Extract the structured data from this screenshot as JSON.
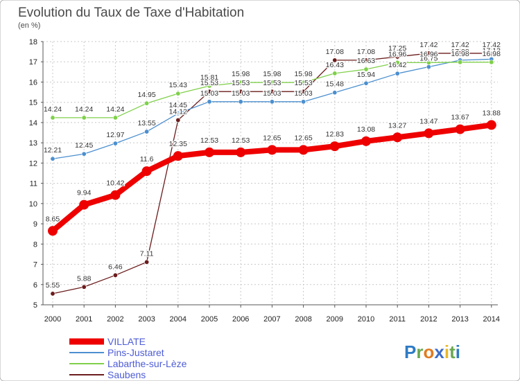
{
  "colors": {
    "background": "#ffffff",
    "grid": "#c8c8c8",
    "axis": "#555555",
    "legend_text": "#4d5cd6",
    "dlabel_halo": "#ffffff"
  },
  "brand": {
    "letters": [
      "P",
      "r",
      "o",
      "x",
      "i",
      "t",
      "i"
    ],
    "colors": [
      "#2e7bc4",
      "#6aa84f",
      "#e07b20",
      "#3b6cc9",
      "#e8b82a",
      "#6aa84f",
      "#2e7bc4"
    ]
  },
  "chart_data": {
    "type": "line",
    "title": "Evolution du Taux de Taxe d'Habitation",
    "subtitle": "(en %)",
    "x": [
      "2000",
      "2001",
      "2002",
      "2003",
      "2004",
      "2005",
      "2006",
      "2007",
      "2008",
      "2009",
      "2010",
      "2011",
      "2012",
      "2013",
      "2014"
    ],
    "ylim": [
      5,
      18
    ],
    "yticks": [
      5,
      6,
      7,
      8,
      9,
      10,
      11,
      12,
      13,
      14,
      15,
      16,
      17,
      18
    ],
    "grid": true,
    "legend_position": "bottom-left",
    "series": [
      {
        "name": "Saubens",
        "color": "#6b1c1c",
        "width": 1.3,
        "marker": 3.2,
        "values": [
          5.55,
          5.88,
          6.46,
          7.11,
          14.12,
          15.53,
          15.53,
          15.53,
          15.53,
          17.08,
          17.08,
          17.25,
          17.42,
          17.42,
          17.42
        ],
        "labels": [
          "5.55",
          "5.88",
          "6.46",
          "7.11",
          "14.12",
          "15.53",
          "15.53",
          "15.53",
          "15.53",
          "17.08",
          "17.08",
          "17.25",
          "17.42",
          "17.42",
          "17.42"
        ]
      },
      {
        "name": "Pins-Justaret",
        "color": "#4b8fcf",
        "width": 1.3,
        "marker": 3.2,
        "values": [
          12.21,
          12.45,
          12.97,
          13.55,
          14.45,
          15.03,
          15.03,
          15.03,
          15.03,
          15.48,
          15.94,
          16.42,
          16.75,
          17.08,
          17.13
        ],
        "labels": [
          "12.21",
          "12.45",
          "12.97",
          "13.55",
          "14.45",
          "15.03",
          "15.03",
          "15.03",
          "15.03",
          "15.48",
          "15.94",
          "16.42",
          "16.75",
          "17.08",
          "17.13"
        ]
      },
      {
        "name": "Labarthe-sur-Lèze",
        "color": "#7fd04a",
        "width": 1.3,
        "marker": 3.2,
        "values": [
          14.24,
          14.24,
          14.24,
          14.95,
          15.43,
          15.81,
          15.98,
          15.98,
          15.98,
          16.43,
          16.63,
          16.96,
          16.96,
          16.98,
          16.98
        ],
        "labels": [
          "14.24",
          "14.24",
          "14.24",
          "14.95",
          "15.43",
          "15.81",
          "15.98",
          "15.98",
          "15.98",
          "16.43",
          "16.63",
          "16.96",
          "16.96",
          "16.98",
          "16.98"
        ]
      },
      {
        "name": "VILLATE",
        "color": "#ee0000",
        "width": 8,
        "marker": 7,
        "values": [
          8.65,
          9.94,
          10.42,
          11.6,
          12.35,
          12.53,
          12.53,
          12.65,
          12.65,
          12.83,
          13.08,
          13.27,
          13.47,
          13.67,
          13.88
        ],
        "labels": [
          "8.65",
          "9.94",
          "10.42",
          "11.6",
          "12.35",
          "12.53",
          "12.53",
          "12.65",
          "12.65",
          "12.83",
          "13.08",
          "13.27",
          "13.47",
          "13.67",
          "13.88"
        ]
      }
    ],
    "legend": [
      {
        "name": "VILLATE",
        "color": "#ee0000",
        "thick": true
      },
      {
        "name": "Pins-Justaret",
        "color": "#4b8fcf",
        "thick": false
      },
      {
        "name": "Labarthe-sur-Lèze",
        "color": "#7fd04a",
        "thick": false
      },
      {
        "name": "Saubens",
        "color": "#6b1c1c",
        "thick": false
      }
    ]
  }
}
